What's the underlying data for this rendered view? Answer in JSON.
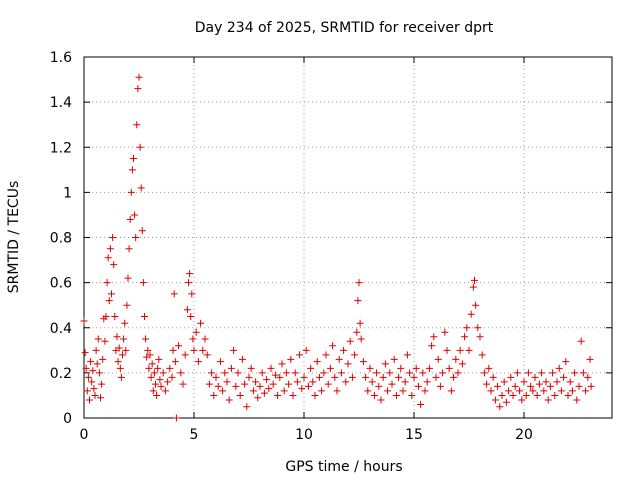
{
  "chart_data": {
    "type": "scatter",
    "title": "Day 234 of 2025, SRMTID for receiver dprt",
    "xlabel": "GPS time / hours",
    "ylabel": "SRMTID / TECUs",
    "xlim": [
      0,
      24
    ],
    "ylim": [
      0,
      1.6
    ],
    "xticks": [
      0,
      5,
      10,
      15,
      20
    ],
    "xtick_labels": [
      "0",
      "5",
      "10",
      "15",
      "20"
    ],
    "yticks": [
      0,
      0.2,
      0.4,
      0.6,
      0.8,
      1.0,
      1.2,
      1.4,
      1.6
    ],
    "ytick_labels": [
      "0",
      "0.2",
      "0.4",
      "0.6",
      "0.8",
      "1",
      "1.2",
      "1.4",
      "1.6"
    ],
    "grid": true,
    "marker": "+",
    "series": [
      {
        "name": "SRMTID",
        "color": "#e00000",
        "points": [
          [
            0.0,
            0.43
          ],
          [
            0.05,
            0.29
          ],
          [
            0.1,
            0.22
          ],
          [
            0.15,
            0.12
          ],
          [
            0.2,
            0.18
          ],
          [
            0.25,
            0.08
          ],
          [
            0.3,
            0.25
          ],
          [
            0.35,
            0.16
          ],
          [
            0.4,
            0.21
          ],
          [
            0.45,
            0.13
          ],
          [
            0.5,
            0.1
          ],
          [
            0.55,
            0.3
          ],
          [
            0.6,
            0.24
          ],
          [
            0.65,
            0.35
          ],
          [
            0.7,
            0.2
          ],
          [
            0.75,
            0.09
          ],
          [
            0.8,
            0.15
          ],
          [
            0.85,
            0.26
          ],
          [
            0.9,
            0.44
          ],
          [
            0.95,
            0.34
          ],
          [
            1.0,
            0.45
          ],
          [
            1.05,
            0.6
          ],
          [
            1.1,
            0.71
          ],
          [
            1.15,
            0.52
          ],
          [
            1.2,
            0.75
          ],
          [
            1.25,
            0.55
          ],
          [
            1.3,
            0.8
          ],
          [
            1.35,
            0.68
          ],
          [
            1.4,
            0.45
          ],
          [
            1.45,
            0.3
          ],
          [
            1.5,
            0.36
          ],
          [
            1.55,
            0.25
          ],
          [
            1.6,
            0.31
          ],
          [
            1.65,
            0.22
          ],
          [
            1.7,
            0.18
          ],
          [
            1.75,
            0.28
          ],
          [
            1.8,
            0.35
          ],
          [
            1.85,
            0.42
          ],
          [
            1.9,
            0.3
          ],
          [
            1.95,
            0.5
          ],
          [
            2.0,
            0.62
          ],
          [
            2.05,
            0.75
          ],
          [
            2.1,
            0.88
          ],
          [
            2.15,
            1.0
          ],
          [
            2.2,
            1.1
          ],
          [
            2.25,
            1.15
          ],
          [
            2.3,
            0.9
          ],
          [
            2.35,
            0.8
          ],
          [
            2.4,
            1.3
          ],
          [
            2.45,
            1.46
          ],
          [
            2.5,
            1.51
          ],
          [
            2.55,
            1.2
          ],
          [
            2.6,
            1.02
          ],
          [
            2.65,
            0.83
          ],
          [
            2.7,
            0.6
          ],
          [
            2.75,
            0.45
          ],
          [
            2.8,
            0.35
          ],
          [
            2.85,
            0.27
          ],
          [
            2.9,
            0.3
          ],
          [
            2.95,
            0.22
          ],
          [
            3.0,
            0.28
          ],
          [
            3.05,
            0.18
          ],
          [
            3.1,
            0.24
          ],
          [
            3.15,
            0.12
          ],
          [
            3.2,
            0.2
          ],
          [
            3.25,
            0.15
          ],
          [
            3.3,
            0.1
          ],
          [
            3.35,
            0.22
          ],
          [
            3.4,
            0.26
          ],
          [
            3.45,
            0.17
          ],
          [
            3.5,
            0.14
          ],
          [
            3.6,
            0.2
          ],
          [
            3.7,
            0.12
          ],
          [
            3.8,
            0.16
          ],
          [
            3.9,
            0.22
          ],
          [
            4.0,
            0.18
          ],
          [
            4.05,
            0.3
          ],
          [
            4.1,
            0.55
          ],
          [
            4.15,
            0.25
          ],
          [
            4.2,
            0.0
          ],
          [
            4.3,
            0.32
          ],
          [
            4.4,
            0.2
          ],
          [
            4.5,
            0.15
          ],
          [
            4.6,
            0.28
          ],
          [
            4.7,
            0.48
          ],
          [
            4.75,
            0.6
          ],
          [
            4.8,
            0.64
          ],
          [
            4.85,
            0.45
          ],
          [
            4.9,
            0.55
          ],
          [
            4.95,
            0.35
          ],
          [
            5.0,
            0.3
          ],
          [
            5.1,
            0.38
          ],
          [
            5.2,
            0.25
          ],
          [
            5.3,
            0.42
          ],
          [
            5.4,
            0.3
          ],
          [
            5.5,
            0.35
          ],
          [
            5.6,
            0.28
          ],
          [
            5.7,
            0.15
          ],
          [
            5.8,
            0.2
          ],
          [
            5.9,
            0.1
          ],
          [
            6.0,
            0.18
          ],
          [
            6.1,
            0.14
          ],
          [
            6.2,
            0.25
          ],
          [
            6.3,
            0.12
          ],
          [
            6.4,
            0.2
          ],
          [
            6.5,
            0.16
          ],
          [
            6.6,
            0.08
          ],
          [
            6.7,
            0.22
          ],
          [
            6.8,
            0.3
          ],
          [
            6.9,
            0.14
          ],
          [
            7.0,
            0.2
          ],
          [
            7.1,
            0.1
          ],
          [
            7.2,
            0.26
          ],
          [
            7.3,
            0.15
          ],
          [
            7.4,
            0.05
          ],
          [
            7.5,
            0.18
          ],
          [
            7.6,
            0.22
          ],
          [
            7.7,
            0.12
          ],
          [
            7.8,
            0.16
          ],
          [
            7.9,
            0.09
          ],
          [
            8.0,
            0.14
          ],
          [
            8.1,
            0.2
          ],
          [
            8.2,
            0.11
          ],
          [
            8.3,
            0.17
          ],
          [
            8.4,
            0.13
          ],
          [
            8.5,
            0.22
          ],
          [
            8.6,
            0.15
          ],
          [
            8.7,
            0.19
          ],
          [
            8.8,
            0.1
          ],
          [
            8.9,
            0.18
          ],
          [
            9.0,
            0.24
          ],
          [
            9.1,
            0.12
          ],
          [
            9.2,
            0.2
          ],
          [
            9.3,
            0.15
          ],
          [
            9.4,
            0.26
          ],
          [
            9.5,
            0.1
          ],
          [
            9.6,
            0.2
          ],
          [
            9.7,
            0.16
          ],
          [
            9.8,
            0.28
          ],
          [
            9.9,
            0.13
          ],
          [
            10.0,
            0.18
          ],
          [
            10.1,
            0.3
          ],
          [
            10.2,
            0.14
          ],
          [
            10.3,
            0.22
          ],
          [
            10.4,
            0.16
          ],
          [
            10.5,
            0.1
          ],
          [
            10.6,
            0.25
          ],
          [
            10.7,
            0.18
          ],
          [
            10.8,
            0.12
          ],
          [
            10.9,
            0.2
          ],
          [
            11.0,
            0.28
          ],
          [
            11.1,
            0.15
          ],
          [
            11.2,
            0.22
          ],
          [
            11.3,
            0.32
          ],
          [
            11.4,
            0.18
          ],
          [
            11.5,
            0.12
          ],
          [
            11.6,
            0.26
          ],
          [
            11.7,
            0.2
          ],
          [
            11.8,
            0.3
          ],
          [
            11.9,
            0.16
          ],
          [
            12.0,
            0.24
          ],
          [
            12.1,
            0.34
          ],
          [
            12.2,
            0.18
          ],
          [
            12.3,
            0.28
          ],
          [
            12.4,
            0.38
          ],
          [
            12.45,
            0.52
          ],
          [
            12.5,
            0.6
          ],
          [
            12.55,
            0.42
          ],
          [
            12.6,
            0.35
          ],
          [
            12.7,
            0.25
          ],
          [
            12.8,
            0.18
          ],
          [
            12.9,
            0.12
          ],
          [
            13.0,
            0.22
          ],
          [
            13.1,
            0.16
          ],
          [
            13.2,
            0.1
          ],
          [
            13.3,
            0.2
          ],
          [
            13.4,
            0.14
          ],
          [
            13.5,
            0.08
          ],
          [
            13.6,
            0.18
          ],
          [
            13.7,
            0.24
          ],
          [
            13.8,
            0.12
          ],
          [
            13.9,
            0.2
          ],
          [
            14.0,
            0.15
          ],
          [
            14.1,
            0.26
          ],
          [
            14.2,
            0.1
          ],
          [
            14.3,
            0.18
          ],
          [
            14.4,
            0.22
          ],
          [
            14.5,
            0.12
          ],
          [
            14.6,
            0.16
          ],
          [
            14.7,
            0.28
          ],
          [
            14.8,
            0.2
          ],
          [
            14.9,
            0.1
          ],
          [
            15.0,
            0.18
          ],
          [
            15.1,
            0.22
          ],
          [
            15.2,
            0.14
          ],
          [
            15.3,
            0.06
          ],
          [
            15.4,
            0.2
          ],
          [
            15.5,
            0.12
          ],
          [
            15.6,
            0.16
          ],
          [
            15.7,
            0.22
          ],
          [
            15.8,
            0.32
          ],
          [
            15.9,
            0.36
          ],
          [
            16.0,
            0.18
          ],
          [
            16.1,
            0.26
          ],
          [
            16.2,
            0.14
          ],
          [
            16.3,
            0.2
          ],
          [
            16.4,
            0.38
          ],
          [
            16.5,
            0.3
          ],
          [
            16.6,
            0.22
          ],
          [
            16.7,
            0.12
          ],
          [
            16.8,
            0.18
          ],
          [
            16.9,
            0.26
          ],
          [
            17.0,
            0.2
          ],
          [
            17.1,
            0.3
          ],
          [
            17.2,
            0.24
          ],
          [
            17.3,
            0.36
          ],
          [
            17.4,
            0.4
          ],
          [
            17.5,
            0.3
          ],
          [
            17.6,
            0.46
          ],
          [
            17.7,
            0.58
          ],
          [
            17.75,
            0.61
          ],
          [
            17.8,
            0.5
          ],
          [
            17.9,
            0.4
          ],
          [
            18.0,
            0.36
          ],
          [
            18.1,
            0.28
          ],
          [
            18.2,
            0.2
          ],
          [
            18.3,
            0.15
          ],
          [
            18.4,
            0.22
          ],
          [
            18.5,
            0.12
          ],
          [
            18.6,
            0.18
          ],
          [
            18.7,
            0.08
          ],
          [
            18.8,
            0.14
          ],
          [
            18.9,
            0.05
          ],
          [
            19.0,
            0.1
          ],
          [
            19.1,
            0.16
          ],
          [
            19.2,
            0.07
          ],
          [
            19.3,
            0.12
          ],
          [
            19.4,
            0.18
          ],
          [
            19.5,
            0.1
          ],
          [
            19.6,
            0.14
          ],
          [
            19.7,
            0.2
          ],
          [
            19.8,
            0.12
          ],
          [
            19.9,
            0.08
          ],
          [
            20.0,
            0.16
          ],
          [
            20.1,
            0.1
          ],
          [
            20.2,
            0.2
          ],
          [
            20.3,
            0.14
          ],
          [
            20.4,
            0.12
          ],
          [
            20.5,
            0.18
          ],
          [
            20.6,
            0.1
          ],
          [
            20.7,
            0.15
          ],
          [
            20.8,
            0.2
          ],
          [
            20.9,
            0.12
          ],
          [
            21.0,
            0.16
          ],
          [
            21.1,
            0.08
          ],
          [
            21.2,
            0.14
          ],
          [
            21.3,
            0.2
          ],
          [
            21.4,
            0.1
          ],
          [
            21.5,
            0.16
          ],
          [
            21.6,
            0.22
          ],
          [
            21.7,
            0.12
          ],
          [
            21.8,
            0.18
          ],
          [
            21.9,
            0.25
          ],
          [
            22.0,
            0.1
          ],
          [
            22.1,
            0.16
          ],
          [
            22.2,
            0.12
          ],
          [
            22.3,
            0.2
          ],
          [
            22.4,
            0.08
          ],
          [
            22.5,
            0.14
          ],
          [
            22.6,
            0.34
          ],
          [
            22.7,
            0.2
          ],
          [
            22.8,
            0.12
          ],
          [
            22.9,
            0.18
          ],
          [
            23.0,
            0.26
          ],
          [
            23.05,
            0.14
          ]
        ]
      }
    ]
  }
}
